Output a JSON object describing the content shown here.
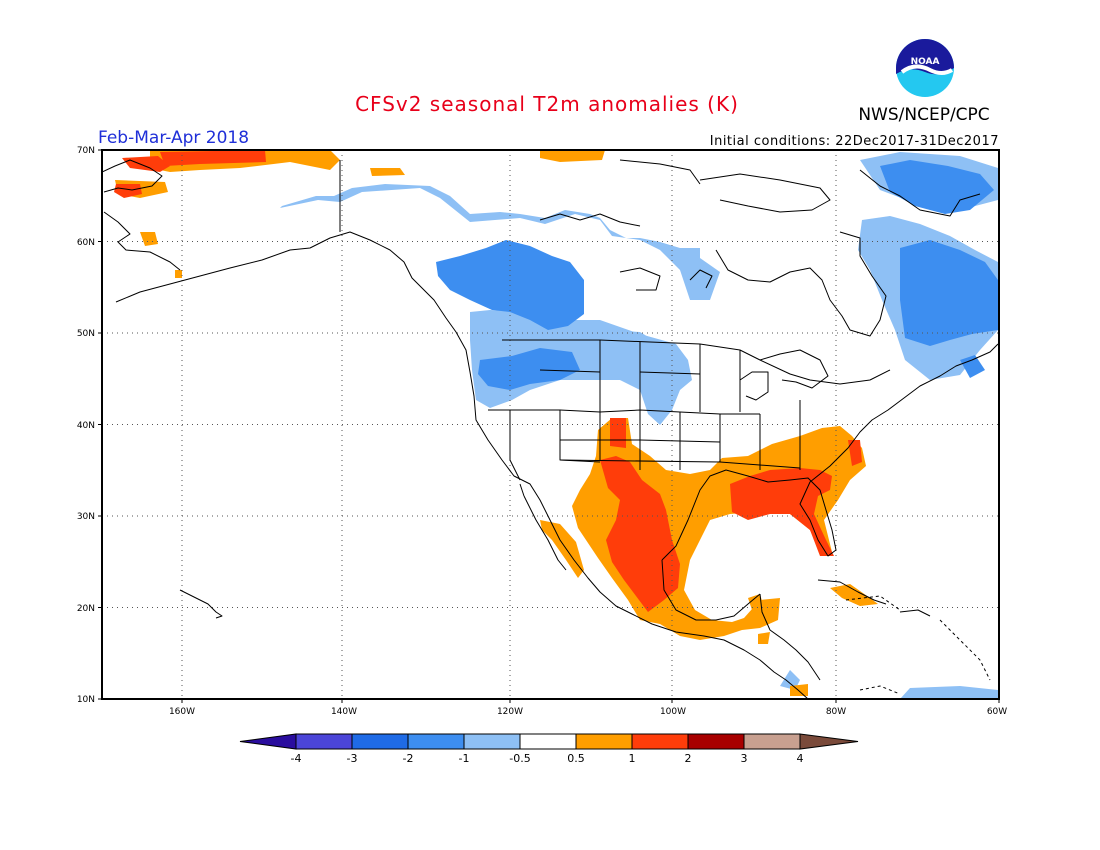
{
  "header": {
    "title": "CFSv2 seasonal T2m anomalies (K)",
    "period": "Feb-Mar-Apr 2018",
    "initial_conditions": "Initial conditions: 22Dec2017-31Dec2017",
    "agency": "NWS/NCEP/CPC",
    "logo_text": "NOAA"
  },
  "map": {
    "lon_range": [
      -172,
      -60
    ],
    "lat_range": [
      10,
      70
    ],
    "lat_labels": [
      "10N",
      "20N",
      "30N",
      "40N",
      "50N",
      "60N",
      "70N"
    ],
    "lon_labels": [
      "160W",
      "140W",
      "120W",
      "100W",
      "80W",
      "60W"
    ],
    "grid": "dotted"
  },
  "colorbar": {
    "labels": [
      "-4",
      "-3",
      "-2",
      "-1",
      "-0.5",
      "0.5",
      "1",
      "2",
      "3",
      "4"
    ],
    "colors": [
      "#2a0d9e",
      "#4b45d8",
      "#1f6be6",
      "#3d8ef0",
      "#8ec0f5",
      "#ffffff",
      "#ff9e00",
      "#ff3d0a",
      "#a80000",
      "#c8a090",
      "#7a4a3a"
    ]
  },
  "anomaly_regions": [
    {
      "level": "below -1",
      "color": "#3d8ef0",
      "regions": [
        "Western Canada interior",
        "Alberta",
        "Saskatchewan",
        "Labrador / Quebec",
        "Hudson Strait"
      ]
    },
    {
      "level": "-1 to -0.5",
      "color": "#8ec0f5",
      "regions": [
        "Northern Canada",
        "Pacific Northwest",
        "Northern Plains",
        "Ontario",
        "Eastern Canada"
      ]
    },
    {
      "level": "0.5 to 1",
      "color": "#ff9e00",
      "regions": [
        "Alaska North Slope",
        "US South",
        "Mexico",
        "Southeast US",
        "Mid-Atlantic",
        "Cuba"
      ]
    },
    {
      "level": "1 to 2",
      "color": "#ff3d0a",
      "regions": [
        "Northern Mexico",
        "West Texas",
        "Gulf Coast",
        "Florida",
        "Western Alaska coast"
      ]
    }
  ]
}
